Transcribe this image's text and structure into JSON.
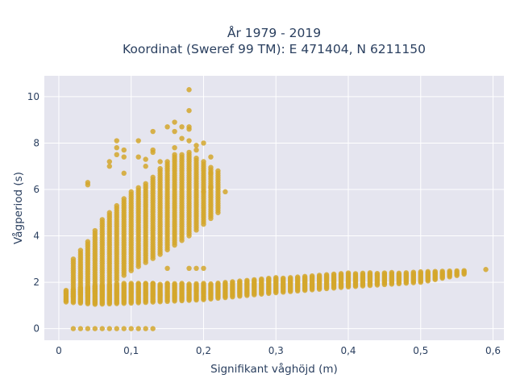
{
  "chart_data": {
    "type": "scatter",
    "title_lines": [
      "År 1979 - 2019",
      "Koordinat (Sweref 99 TM): E 471404, N 6211150"
    ],
    "xlabel": "Signifikant våghöjd (m)",
    "ylabel": "Vågperiod (s)",
    "xlim": [
      -0.02,
      0.615
    ],
    "ylim": [
      -0.5,
      10.9
    ],
    "xticks": [
      0,
      0.1,
      0.2,
      0.3,
      0.4,
      0.5,
      0.6
    ],
    "xtick_labels": [
      "0",
      "0,1",
      "0,2",
      "0,3",
      "0,4",
      "0,5",
      "0,6"
    ],
    "yticks": [
      0,
      2,
      4,
      6,
      8,
      10
    ],
    "ytick_labels": [
      "0",
      "2",
      "4",
      "6",
      "8",
      "10"
    ],
    "grid": true,
    "legend": "none",
    "colors": {
      "marker": "#d4a72c",
      "plot_bg": "#e5e5ef",
      "grid": "#ffffff",
      "text": "#2a3f5f"
    },
    "clusters": {
      "calm_zero_period": {
        "x_range": [
          0.02,
          0.13
        ],
        "x_step": 0.01,
        "y": 0
      },
      "swell_lower_band": {
        "x_range": [
          0.01,
          0.56
        ],
        "x_step": 0.01,
        "y_min": [
          [
            0.01,
            1.15
          ],
          [
            0.05,
            1.05
          ],
          [
            0.1,
            1.1
          ],
          [
            0.2,
            1.25
          ],
          [
            0.3,
            1.55
          ],
          [
            0.4,
            1.8
          ],
          [
            0.5,
            2.0
          ],
          [
            0.56,
            2.35
          ]
        ],
        "y_max": [
          [
            0.01,
            1.65
          ],
          [
            0.05,
            1.85
          ],
          [
            0.1,
            1.95
          ],
          [
            0.2,
            1.95
          ],
          [
            0.3,
            2.2
          ],
          [
            0.4,
            2.4
          ],
          [
            0.5,
            2.45
          ],
          [
            0.56,
            2.5
          ]
        ]
      },
      "wind_sea_upper_band": {
        "x_range": [
          0.02,
          0.22
        ],
        "x_step": 0.01,
        "y_min": [
          [
            0.02,
            1.4
          ],
          [
            0.06,
            1.7
          ],
          [
            0.1,
            2.5
          ],
          [
            0.14,
            3.2
          ],
          [
            0.18,
            4.0
          ],
          [
            0.22,
            5.0
          ]
        ],
        "y_max": [
          [
            0.02,
            3.0
          ],
          [
            0.04,
            3.8
          ],
          [
            0.06,
            4.7
          ],
          [
            0.08,
            5.3
          ],
          [
            0.1,
            5.9
          ],
          [
            0.12,
            6.3
          ],
          [
            0.14,
            6.9
          ],
          [
            0.16,
            7.5
          ],
          [
            0.18,
            7.6
          ],
          [
            0.2,
            7.2
          ],
          [
            0.22,
            6.8
          ]
        ]
      }
    },
    "outliers": [
      [
        0.04,
        6.3
      ],
      [
        0.04,
        6.2
      ],
      [
        0.07,
        7.2
      ],
      [
        0.07,
        7.0
      ],
      [
        0.08,
        8.1
      ],
      [
        0.08,
        7.8
      ],
      [
        0.08,
        7.5
      ],
      [
        0.09,
        7.7
      ],
      [
        0.09,
        7.4
      ],
      [
        0.09,
        6.7
      ],
      [
        0.11,
        8.1
      ],
      [
        0.11,
        7.4
      ],
      [
        0.12,
        7.3
      ],
      [
        0.12,
        7.0
      ],
      [
        0.13,
        8.5
      ],
      [
        0.13,
        7.7
      ],
      [
        0.13,
        7.6
      ],
      [
        0.14,
        7.2
      ],
      [
        0.15,
        8.7
      ],
      [
        0.16,
        8.9
      ],
      [
        0.16,
        8.5
      ],
      [
        0.16,
        7.8
      ],
      [
        0.17,
        8.7
      ],
      [
        0.17,
        8.2
      ],
      [
        0.18,
        10.3
      ],
      [
        0.18,
        9.4
      ],
      [
        0.18,
        8.7
      ],
      [
        0.18,
        8.6
      ],
      [
        0.18,
        8.1
      ],
      [
        0.19,
        7.9
      ],
      [
        0.19,
        7.7
      ],
      [
        0.2,
        8.0
      ],
      [
        0.21,
        7.4
      ],
      [
        0.21,
        6.7
      ],
      [
        0.23,
        5.9
      ],
      [
        0.21,
        6.1
      ],
      [
        0.2,
        5.9
      ],
      [
        0.15,
        2.6
      ],
      [
        0.18,
        2.6
      ],
      [
        0.19,
        2.6
      ],
      [
        0.2,
        2.6
      ],
      [
        0.59,
        2.55
      ],
      [
        0.08,
        1.95
      ],
      [
        0.09,
        1.95
      ],
      [
        0.11,
        1.95
      ],
      [
        0.12,
        1.95
      ],
      [
        0.13,
        1.95
      ],
      [
        0.15,
        1.95
      ],
      [
        0.17,
        1.95
      ]
    ]
  }
}
